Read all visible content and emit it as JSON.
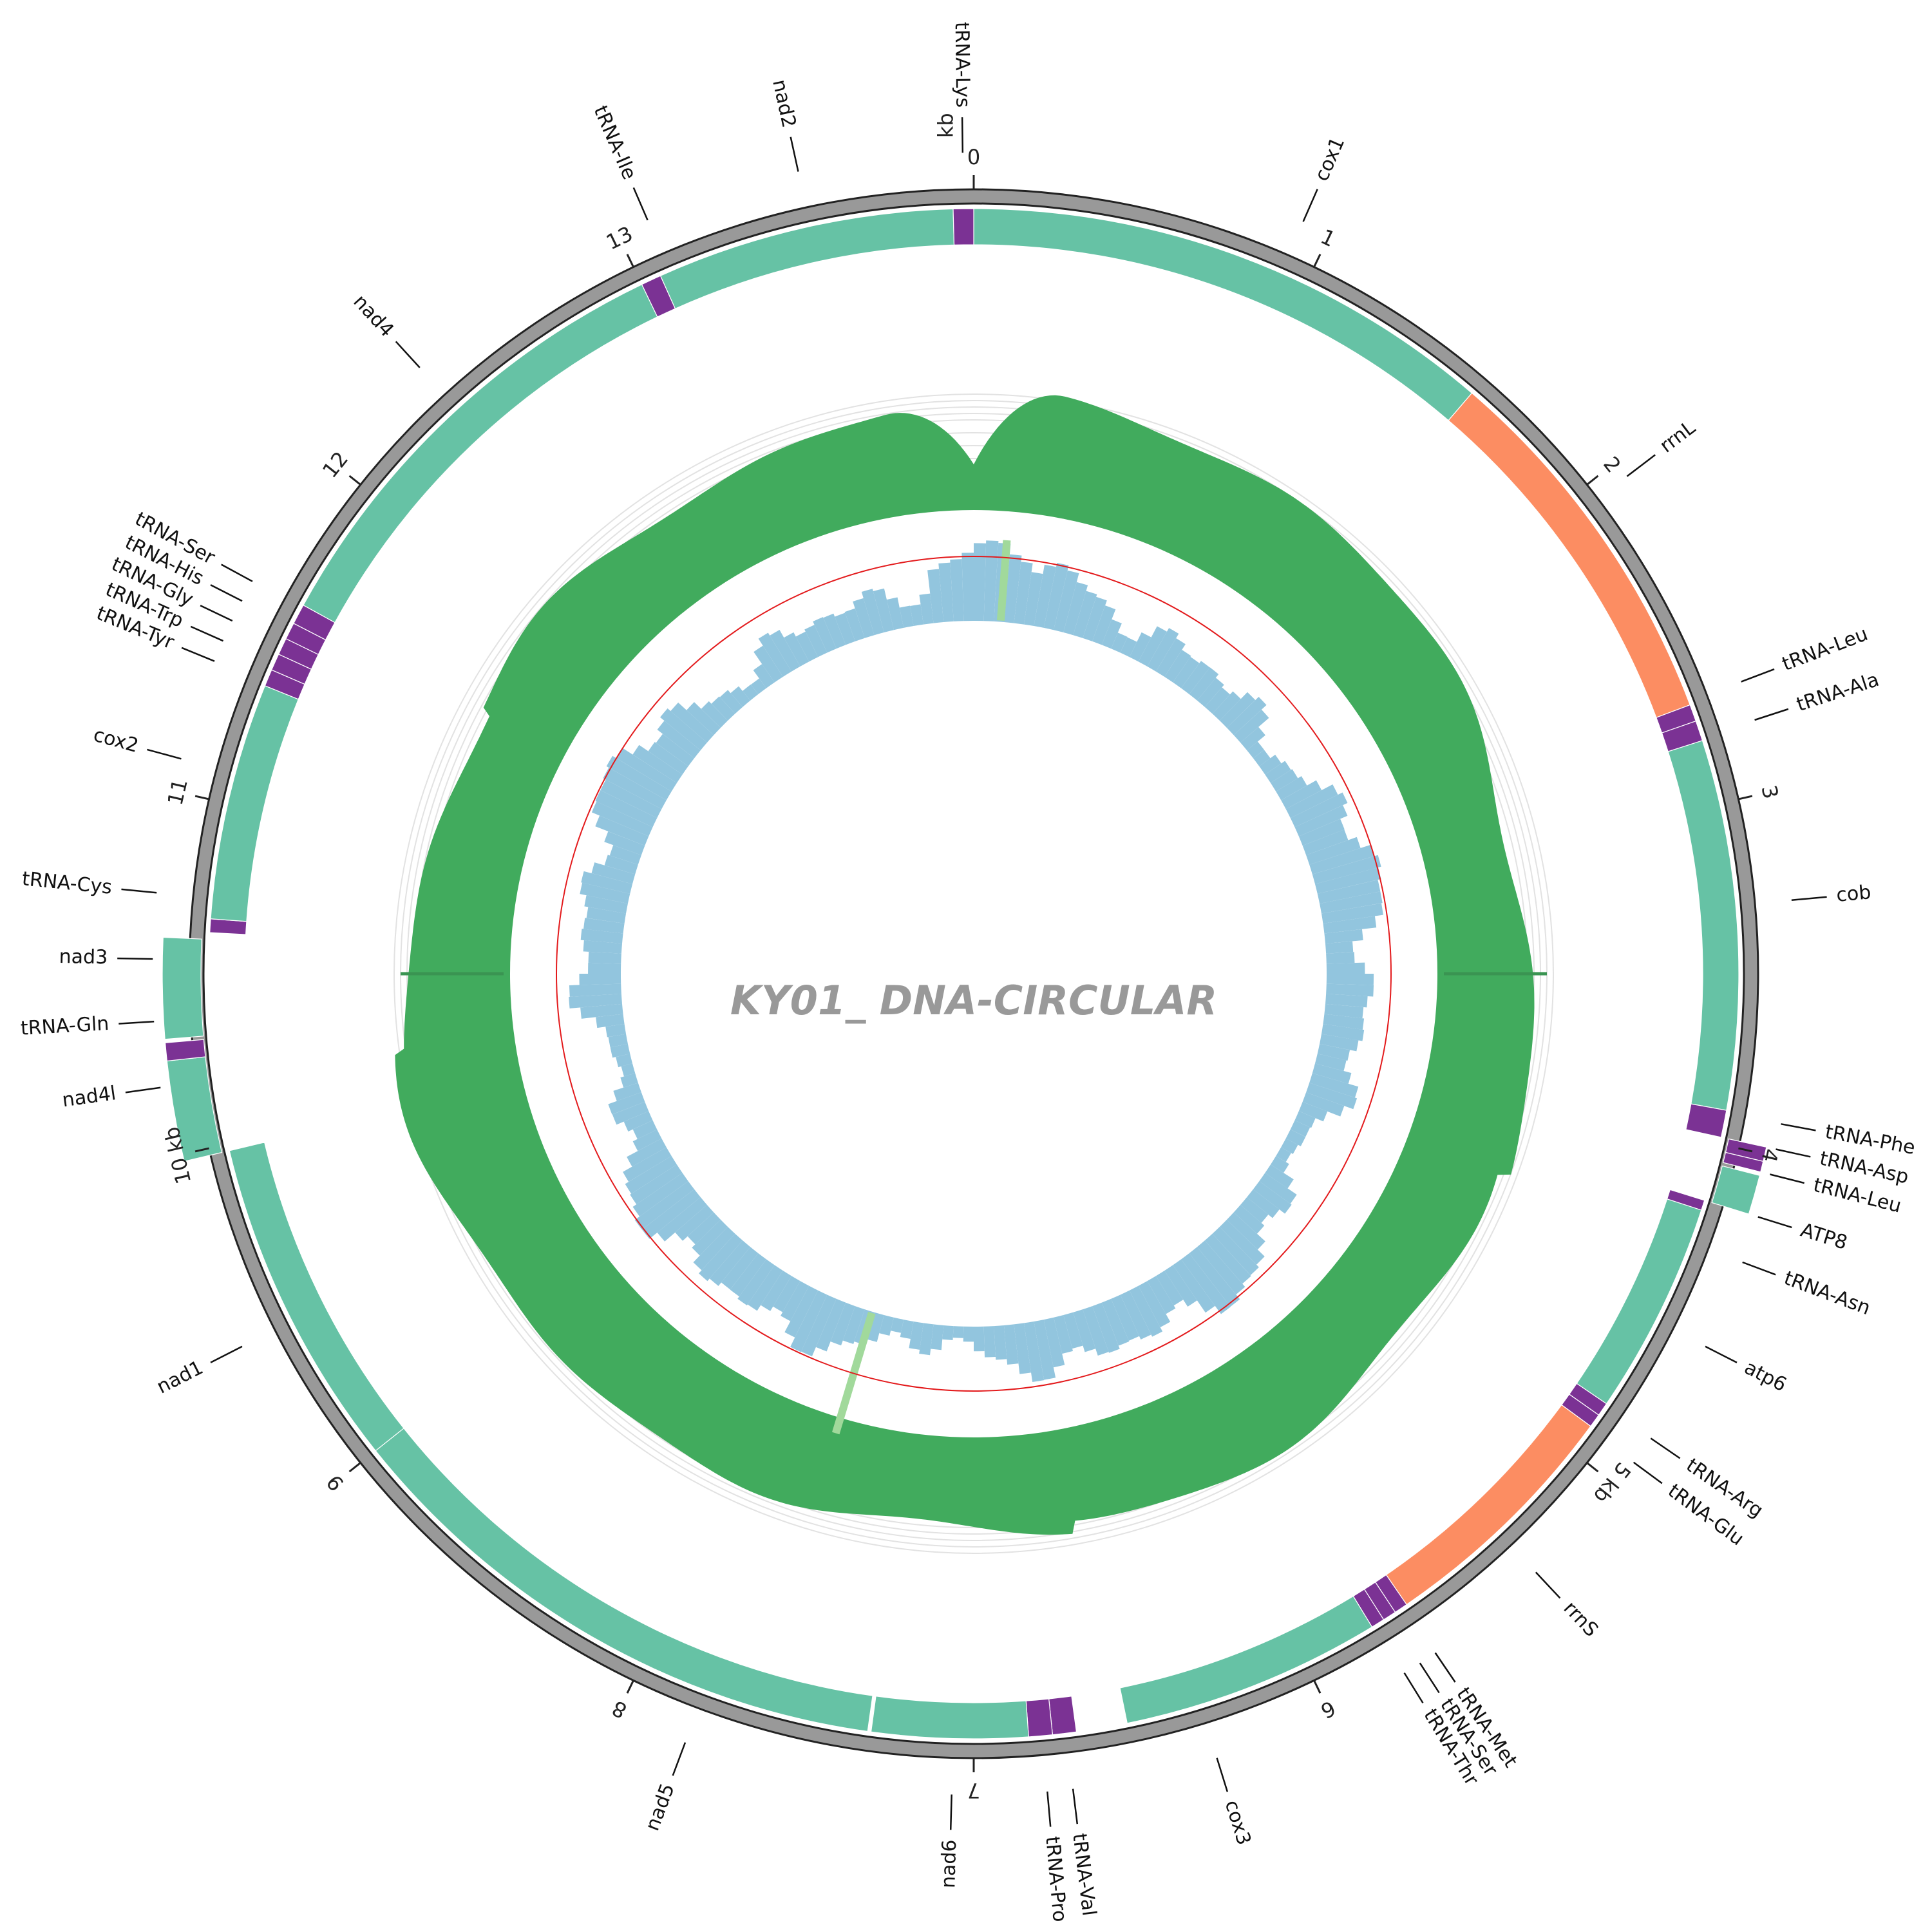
{
  "title": "KY01_ DNA-CIRCULAR",
  "genome_kb": 14,
  "colors": {
    "cds": "#66c2a5",
    "rrna": "#fc8d62",
    "trna": "#7b3294",
    "backbone": "#999999",
    "gc_content": "#41ab5d",
    "gc_skew": "#92c5de",
    "skew_marker": "#a1d99b",
    "reference_ring": "#e31a1c"
  },
  "ticks": {
    "0": "0",
    "1": "1",
    "2": "2",
    "3": "3",
    "4": "4",
    "5": "5 kb",
    "6": "6",
    "7": "7",
    "8": "8",
    "9": "9",
    "10": "10 kb",
    "11": "11",
    "12": "12",
    "13": "13",
    "unit_kb": "kb"
  },
  "features": [
    {
      "name": "cox1",
      "type": "cds",
      "start_kb": 0.0,
      "end_kb": 1.58,
      "outer": false
    },
    {
      "name": "rrnL",
      "type": "rrna",
      "start_kb": 1.58,
      "end_kb": 2.7,
      "outer": false
    },
    {
      "name": "tRNA-Leu",
      "type": "trna",
      "start_kb": 2.7,
      "end_kb": 2.75,
      "outer": false
    },
    {
      "name": "tRNA-Ala",
      "type": "trna",
      "start_kb": 2.75,
      "end_kb": 2.81,
      "outer": false
    },
    {
      "name": "cob",
      "type": "cds",
      "start_kb": 2.81,
      "end_kb": 3.9,
      "outer": false
    },
    {
      "name": "tRNA-Phe",
      "type": "trna",
      "start_kb": 3.9,
      "end_kb": 3.98,
      "outer": false
    },
    {
      "name": "tRNA-Asp",
      "type": "trna",
      "start_kb": 3.98,
      "end_kb": 4.02,
      "outer": true
    },
    {
      "name": "tRNA-Leu",
      "type": "trna",
      "start_kb": 4.02,
      "end_kb": 4.05,
      "outer": true
    },
    {
      "name": "ATP8",
      "type": "cds",
      "start_kb": 4.06,
      "end_kb": 4.17,
      "outer": true
    },
    {
      "name": "tRNA-Asn",
      "type": "trna",
      "start_kb": 4.17,
      "end_kb": 4.2,
      "outer": false
    },
    {
      "name": "atp6",
      "type": "cds",
      "start_kb": 4.2,
      "end_kb": 4.83,
      "outer": false
    },
    {
      "name": "tRNA-Arg",
      "type": "trna",
      "start_kb": 4.83,
      "end_kb": 4.87,
      "outer": false
    },
    {
      "name": "tRNA-Glu",
      "type": "trna",
      "start_kb": 4.87,
      "end_kb": 4.91,
      "outer": false
    },
    {
      "name": "rrnS",
      "type": "rrna",
      "start_kb": 4.91,
      "end_kb": 5.66,
      "outer": false
    },
    {
      "name": "tRNA-Met",
      "type": "trna",
      "start_kb": 5.66,
      "end_kb": 5.7,
      "outer": false
    },
    {
      "name": "tRNA-Ser",
      "type": "trna",
      "start_kb": 5.7,
      "end_kb": 5.74,
      "outer": false
    },
    {
      "name": "tRNA-Thr",
      "type": "trna",
      "start_kb": 5.74,
      "end_kb": 5.78,
      "outer": false
    },
    {
      "name": "cox3",
      "type": "cds",
      "start_kb": 5.78,
      "end_kb": 6.55,
      "outer": false
    },
    {
      "name": "tRNA-Val",
      "type": "trna",
      "start_kb": 6.7,
      "end_kb": 6.77,
      "outer": false
    },
    {
      "name": "tRNA-Pro",
      "type": "trna",
      "start_kb": 6.77,
      "end_kb": 6.84,
      "outer": false
    },
    {
      "name": "nad6",
      "type": "cds",
      "start_kb": 6.84,
      "end_kb": 7.3,
      "outer": false
    },
    {
      "name": "nad5",
      "type": "cds",
      "start_kb": 7.31,
      "end_kb": 9.0,
      "outer": false
    },
    {
      "name": "nad1",
      "type": "cds",
      "start_kb": 9.0,
      "end_kb": 9.98,
      "outer": false
    },
    {
      "name": "nad4l",
      "type": "cds",
      "start_kb": 9.98,
      "end_kb": 10.26,
      "outer": true
    },
    {
      "name": "tRNA-Gln",
      "type": "trna",
      "start_kb": 10.26,
      "end_kb": 10.31,
      "outer": true
    },
    {
      "name": "nad3",
      "type": "cds",
      "start_kb": 10.32,
      "end_kb": 10.6,
      "outer": true
    },
    {
      "name": "tRNA-Cys",
      "type": "trna",
      "start_kb": 10.62,
      "end_kb": 10.66,
      "outer": false
    },
    {
      "name": "cox2",
      "type": "cds",
      "start_kb": 10.66,
      "end_kb": 11.36,
      "outer": false
    },
    {
      "name": "tRNA-Tyr",
      "type": "trna",
      "start_kb": 11.36,
      "end_kb": 11.41,
      "outer": false
    },
    {
      "name": "tRNA-Trp",
      "type": "trna",
      "start_kb": 11.41,
      "end_kb": 11.46,
      "outer": false
    },
    {
      "name": "tRNA-Gly",
      "type": "trna",
      "start_kb": 11.46,
      "end_kb": 11.51,
      "outer": false
    },
    {
      "name": "tRNA-His",
      "type": "trna",
      "start_kb": 11.51,
      "end_kb": 11.56,
      "outer": false
    },
    {
      "name": "tRNA-Ser",
      "type": "trna",
      "start_kb": 11.56,
      "end_kb": 11.62,
      "outer": false
    },
    {
      "name": "nad4",
      "type": "cds",
      "start_kb": 11.62,
      "end_kb": 13.0,
      "outer": false
    },
    {
      "name": "tRNA-Ile",
      "type": "trna",
      "start_kb": 13.0,
      "end_kb": 13.06,
      "outer": false
    },
    {
      "name": "nad2",
      "type": "cds",
      "start_kb": 13.06,
      "end_kb": 13.94,
      "outer": false
    },
    {
      "name": "tRNA-Lys",
      "type": "trna",
      "start_kb": 13.94,
      "end_kb": 14.0,
      "outer": false
    }
  ],
  "labels": [
    {
      "text": "cox1",
      "pos_kb": 0.92
    },
    {
      "text": "rrnL",
      "pos_kb": 2.05
    },
    {
      "text": "tRNA-Leu",
      "pos_kb": 2.69
    },
    {
      "text": "tRNA-Ala",
      "pos_kb": 2.8
    },
    {
      "text": "cob",
      "pos_kb": 3.3
    },
    {
      "text": "tRNA-Phe",
      "pos_kb": 3.91
    },
    {
      "text": "tRNA-Asp",
      "pos_kb": 3.98
    },
    {
      "text": "tRNA-Leu",
      "pos_kb": 4.05
    },
    {
      "text": "ATP8",
      "pos_kb": 4.17
    },
    {
      "text": "tRNA-Asn",
      "pos_kb": 4.3
    },
    {
      "text": "atp6",
      "pos_kb": 4.55
    },
    {
      "text": "tRNA-Arg",
      "pos_kb": 4.84
    },
    {
      "text": "tRNA-Glu",
      "pos_kb": 4.92
    },
    {
      "text": "rrnS",
      "pos_kb": 5.32
    },
    {
      "text": "tRNA-Met",
      "pos_kb": 5.67
    },
    {
      "text": "tRNA-Ser",
      "pos_kb": 5.72
    },
    {
      "text": "tRNA-Thr",
      "pos_kb": 5.77
    },
    {
      "text": "cox3",
      "pos_kb": 6.33
    },
    {
      "text": "tRNA-Val",
      "pos_kb": 6.73
    },
    {
      "text": "tRNA-Pro",
      "pos_kb": 6.8
    },
    {
      "text": "nad6",
      "pos_kb": 7.06
    },
    {
      "text": "nad5",
      "pos_kb": 7.8
    },
    {
      "text": "nad1",
      "pos_kb": 9.45
    },
    {
      "text": "nad4l",
      "pos_kb": 10.19
    },
    {
      "text": "tRNA-Gln",
      "pos_kb": 10.37
    },
    {
      "text": "nad3",
      "pos_kb": 10.54
    },
    {
      "text": "tRNA-Cys",
      "pos_kb": 10.72
    },
    {
      "text": "cox2",
      "pos_kb": 11.09
    },
    {
      "text": "tRNA-Tyr",
      "pos_kb": 11.37
    },
    {
      "text": "tRNA-Trp",
      "pos_kb": 11.43
    },
    {
      "text": "tRNA-Gly",
      "pos_kb": 11.49
    },
    {
      "text": "tRNA-His",
      "pos_kb": 11.55
    },
    {
      "text": "tRNA-Ser",
      "pos_kb": 11.61
    },
    {
      "text": "nad4",
      "pos_kb": 12.35
    },
    {
      "text": "tRNA-Ile",
      "pos_kb": 13.09
    },
    {
      "text": "nad2",
      "pos_kb": 13.52
    },
    {
      "text": "tRNA-Lys",
      "pos_kb": 13.97
    }
  ],
  "gc_skew_markers_kb": [
    0.17,
    7.65
  ]
}
